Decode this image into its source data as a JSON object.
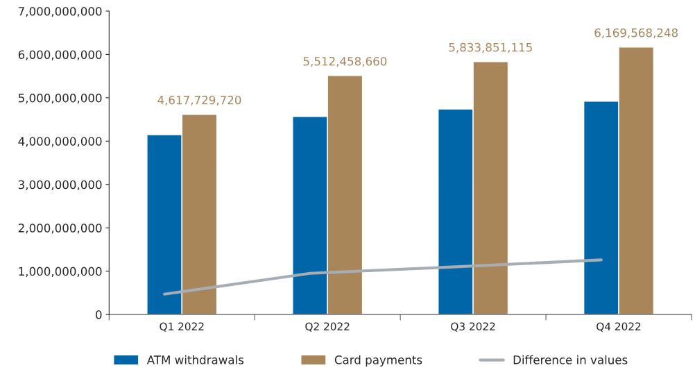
{
  "chart_data": {
    "type": "bar",
    "categories": [
      "Q1 2022",
      "Q2 2022",
      "Q3 2022",
      "Q4 2022"
    ],
    "series": [
      {
        "name": "ATM withdrawals",
        "type": "bar",
        "color": "#0066a8",
        "values": [
          4150000000,
          4570000000,
          4740000000,
          4920000000
        ]
      },
      {
        "name": "Card payments",
        "type": "bar",
        "color": "#a8865a",
        "values": [
          4617729720,
          5512458660,
          5833851115,
          6169568248
        ],
        "value_labels": [
          "4,617,729,720",
          "5,512,458,660",
          "5,833,851,115",
          "6,169,568,248"
        ]
      },
      {
        "name": "Difference in values",
        "type": "line",
        "color": "#a6adb4",
        "values": [
          470000000,
          950000000,
          1100000000,
          1260000000
        ]
      }
    ],
    "ylim": [
      0,
      7000000000
    ],
    "yticks": [
      0,
      {
        "value": 1000000000,
        "label": "1,000,000,000"
      },
      {
        "value": 2000000000,
        "label": "2,000,000,000"
      },
      {
        "value": 3000000000,
        "label": "3,000,000,000"
      },
      {
        "value": 4000000000,
        "label": "4,000,000,000"
      },
      {
        "value": 5000000000,
        "label": "5,000,000,000"
      },
      {
        "value": 6000000000,
        "label": "6,000,000,000"
      },
      {
        "value": 7000000000,
        "label": "7,000,000,000"
      }
    ],
    "grid": false,
    "legend": "bottom",
    "marker": "none",
    "line_style": "solid"
  }
}
